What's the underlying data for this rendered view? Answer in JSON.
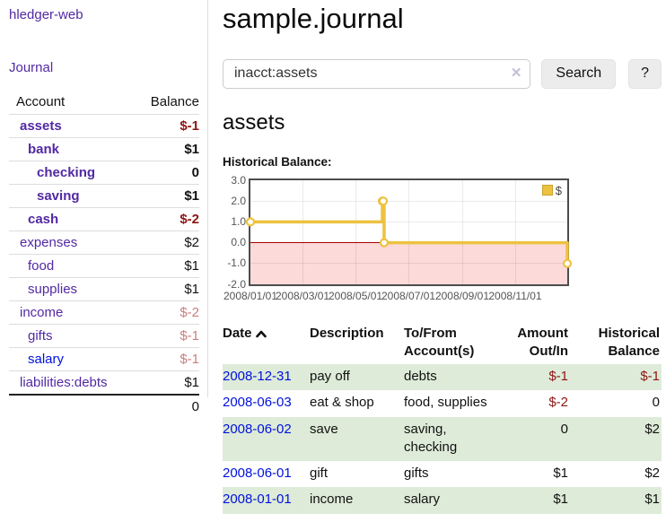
{
  "app": {
    "title": "hledger-web",
    "nav": {
      "journal": "Journal"
    }
  },
  "sidebar": {
    "headers": [
      "Account",
      "Balance"
    ],
    "accounts": [
      {
        "name": "assets",
        "balance": "$-1",
        "depth": 1,
        "bold": true,
        "tone": "neg"
      },
      {
        "name": "bank",
        "balance": "$1",
        "depth": 2,
        "bold": true,
        "tone": ""
      },
      {
        "name": "checking",
        "balance": "0",
        "depth": 3,
        "bold": true,
        "tone": ""
      },
      {
        "name": "saving",
        "balance": "$1",
        "depth": 3,
        "bold": true,
        "tone": ""
      },
      {
        "name": "cash",
        "balance": "$-2",
        "depth": 2,
        "bold": true,
        "tone": "neg"
      },
      {
        "name": "expenses",
        "balance": "$2",
        "depth": 1,
        "bold": false,
        "tone": ""
      },
      {
        "name": "food",
        "balance": "$1",
        "depth": 2,
        "bold": false,
        "tone": ""
      },
      {
        "name": "supplies",
        "balance": "$1",
        "depth": 2,
        "bold": false,
        "tone": ""
      },
      {
        "name": "income",
        "balance": "$-2",
        "depth": 1,
        "bold": false,
        "tone": "negl"
      },
      {
        "name": "gifts",
        "balance": "$-1",
        "depth": 2,
        "bold": false,
        "tone": "negl"
      },
      {
        "name": "salary",
        "balance": "$-1",
        "depth": 2,
        "bold": false,
        "tone": "negl",
        "link_style": "unvisited"
      },
      {
        "name": "liabilities:debts",
        "balance": "$1",
        "depth": 1,
        "bold": false,
        "tone": ""
      }
    ],
    "total": "0"
  },
  "main": {
    "title": "sample.journal",
    "search": {
      "value": "inacct:assets",
      "clear_icon": "✕",
      "button_label": "Search",
      "help_label": "?"
    },
    "account_heading": "assets"
  },
  "chart_data": {
    "type": "line",
    "title": "Historical Balance:",
    "series": [
      {
        "name": "$",
        "color": "#edc240",
        "step": true,
        "points": [
          [
            "2008-01-01",
            1
          ],
          [
            "2008-06-01",
            2
          ],
          [
            "2008-06-02",
            2
          ],
          [
            "2008-06-03",
            0
          ],
          [
            "2008-12-31",
            -1
          ]
        ]
      }
    ],
    "x_range": [
      "2008-01-01",
      "2008-12-31"
    ],
    "ylim": [
      -2,
      3
    ],
    "yticks": [
      3.0,
      2.0,
      1.0,
      0.0,
      -1.0,
      -2.0
    ],
    "xticks": [
      "2008/01/01",
      "2008/03/01",
      "2008/05/01",
      "2008/07/01",
      "2008/09/01",
      "2008/11/01"
    ],
    "legend": {
      "label": "$",
      "position": "top-right"
    },
    "markings": {
      "zero_line_color": "#a40000",
      "negative_region_color": "#fcdada"
    },
    "grid": true
  },
  "transactions": {
    "headers": [
      "Date",
      "Description",
      "To/From Account(s)",
      "Amount Out/In",
      "Historical Balance"
    ],
    "rows": [
      {
        "date": "2008-12-31",
        "description": "pay off",
        "accounts": "debts",
        "amount": "$-1",
        "balance": "$-1"
      },
      {
        "date": "2008-06-03",
        "description": "eat & shop",
        "accounts": "food, supplies",
        "amount": "$-2",
        "balance": "0"
      },
      {
        "date": "2008-06-02",
        "description": "save",
        "accounts": "saving, checking",
        "amount": "0",
        "balance": "$2"
      },
      {
        "date": "2008-06-01",
        "description": "gift",
        "accounts": "gifts",
        "amount": "$1",
        "balance": "$2"
      },
      {
        "date": "2008-01-01",
        "description": "income",
        "accounts": "salary",
        "amount": "$1",
        "balance": "$1"
      }
    ]
  }
}
